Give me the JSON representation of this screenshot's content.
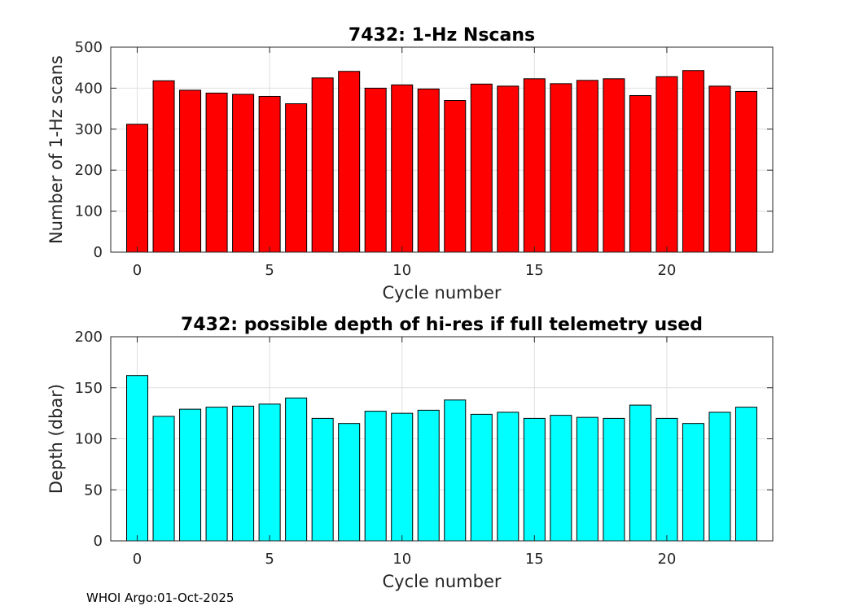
{
  "footer": "WHOI Argo:01-Oct-2025",
  "chart_data": [
    {
      "type": "bar",
      "title": "7432: 1-Hz Nscans",
      "xlabel": "Cycle number",
      "ylabel": "Number of 1-Hz scans",
      "color": "#ff0000",
      "edge_color": "#000000",
      "xlim": [
        -1,
        24
      ],
      "ylim": [
        0,
        500
      ],
      "xticks": [
        0,
        5,
        10,
        15,
        20
      ],
      "yticks": [
        0,
        100,
        200,
        300,
        400,
        500
      ],
      "grid": true,
      "x": [
        0,
        1,
        2,
        3,
        4,
        5,
        6,
        7,
        8,
        9,
        10,
        11,
        12,
        13,
        14,
        15,
        16,
        17,
        18,
        19,
        20,
        21,
        22,
        23
      ],
      "values": [
        312,
        418,
        395,
        388,
        385,
        380,
        362,
        425,
        441,
        400,
        408,
        398,
        370,
        410,
        405,
        423,
        411,
        419,
        423,
        382,
        428,
        443,
        405,
        392
      ]
    },
    {
      "type": "bar",
      "title": "7432: possible depth of hi-res if full telemetry used",
      "xlabel": "Cycle number",
      "ylabel": "Depth (dbar)",
      "color": "#00ffff",
      "edge_color": "#000000",
      "xlim": [
        -1,
        24
      ],
      "ylim": [
        0,
        200
      ],
      "xticks": [
        0,
        5,
        10,
        15,
        20
      ],
      "yticks": [
        0,
        50,
        100,
        150,
        200
      ],
      "grid": true,
      "x": [
        0,
        1,
        2,
        3,
        4,
        5,
        6,
        7,
        8,
        9,
        10,
        11,
        12,
        13,
        14,
        15,
        16,
        17,
        18,
        19,
        20,
        21,
        22,
        23
      ],
      "values": [
        162,
        122,
        129,
        131,
        132,
        134,
        140,
        120,
        115,
        127,
        125,
        128,
        138,
        124,
        126,
        120,
        123,
        121,
        120,
        133,
        120,
        115,
        126,
        131
      ]
    }
  ]
}
